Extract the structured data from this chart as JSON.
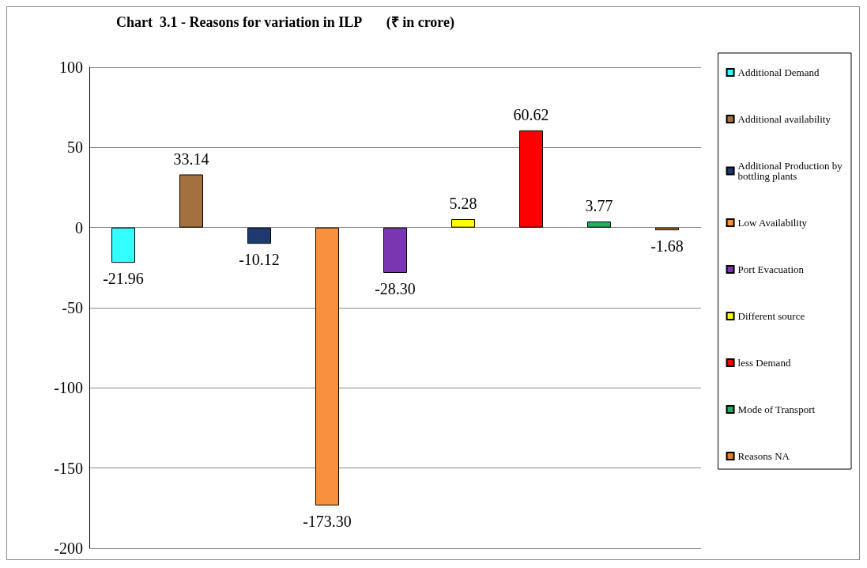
{
  "chart_data": {
    "type": "bar",
    "title": "Chart  3.1 - Reasons for variation in ILP       (₹ in crore)",
    "categories": [
      null,
      null,
      null,
      null,
      null,
      null,
      null,
      null,
      null
    ],
    "series": [
      {
        "name": "Additional Demand",
        "color": "#33ffff",
        "values": [
          -21.96,
          null,
          null,
          null,
          null,
          null,
          null,
          null,
          null
        ],
        "value_labels": [
          "-21.96",
          null,
          null,
          null,
          null,
          null,
          null,
          null,
          null
        ]
      },
      {
        "name": "Additional availability",
        "color": "#a57040",
        "values": [
          null,
          33.14,
          null,
          null,
          null,
          null,
          null,
          null,
          null
        ],
        "value_labels": [
          null,
          "33.14",
          null,
          null,
          null,
          null,
          null,
          null,
          null
        ]
      },
      {
        "name": "Additional Production by bottling plants",
        "color": "#1f3a6e",
        "values": [
          null,
          null,
          -10.12,
          null,
          null,
          null,
          null,
          null,
          null
        ],
        "value_labels": [
          null,
          null,
          "-10.12",
          null,
          null,
          null,
          null,
          null,
          null
        ]
      },
      {
        "name": "Low Availability",
        "color": "#f7913d",
        "values": [
          null,
          null,
          null,
          -173.3,
          null,
          null,
          null,
          null,
          null
        ],
        "value_labels": [
          null,
          null,
          null,
          "-173.30",
          null,
          null,
          null,
          null,
          null
        ]
      },
      {
        "name": "Port Evacuation",
        "color": "#7a35b0",
        "values": [
          null,
          null,
          null,
          null,
          -28.3,
          null,
          null,
          null,
          null
        ],
        "value_labels": [
          null,
          null,
          null,
          null,
          "-28.30",
          null,
          null,
          null,
          null
        ]
      },
      {
        "name": "Different source",
        "color": "#ffff00",
        "values": [
          null,
          null,
          null,
          null,
          null,
          5.28,
          null,
          null,
          null
        ],
        "value_labels": [
          null,
          null,
          null,
          null,
          null,
          "5.28",
          null,
          null,
          null
        ]
      },
      {
        "name": "less Demand",
        "color": "#ff0000",
        "values": [
          null,
          null,
          null,
          null,
          null,
          null,
          60.62,
          null,
          null
        ],
        "value_labels": [
          null,
          null,
          null,
          null,
          null,
          null,
          "60.62",
          null,
          null
        ]
      },
      {
        "name": "Mode of Transport",
        "color": "#22b060",
        "values": [
          null,
          null,
          null,
          null,
          null,
          null,
          null,
          3.77,
          null
        ],
        "value_labels": [
          null,
          null,
          null,
          null,
          null,
          null,
          null,
          "3.77",
          null
        ]
      },
      {
        "name": "Reasons NA",
        "color": "#e0802a",
        "values": [
          null,
          null,
          null,
          null,
          null,
          null,
          null,
          null,
          -1.68
        ],
        "value_labels": [
          null,
          null,
          null,
          null,
          null,
          null,
          null,
          null,
          "-1.68"
        ]
      }
    ],
    "ylim": [
      -200,
      100
    ],
    "yticks": [
      -200,
      -150,
      -100,
      -50,
      0,
      50,
      100
    ],
    "grid": "y",
    "legend": "right"
  }
}
